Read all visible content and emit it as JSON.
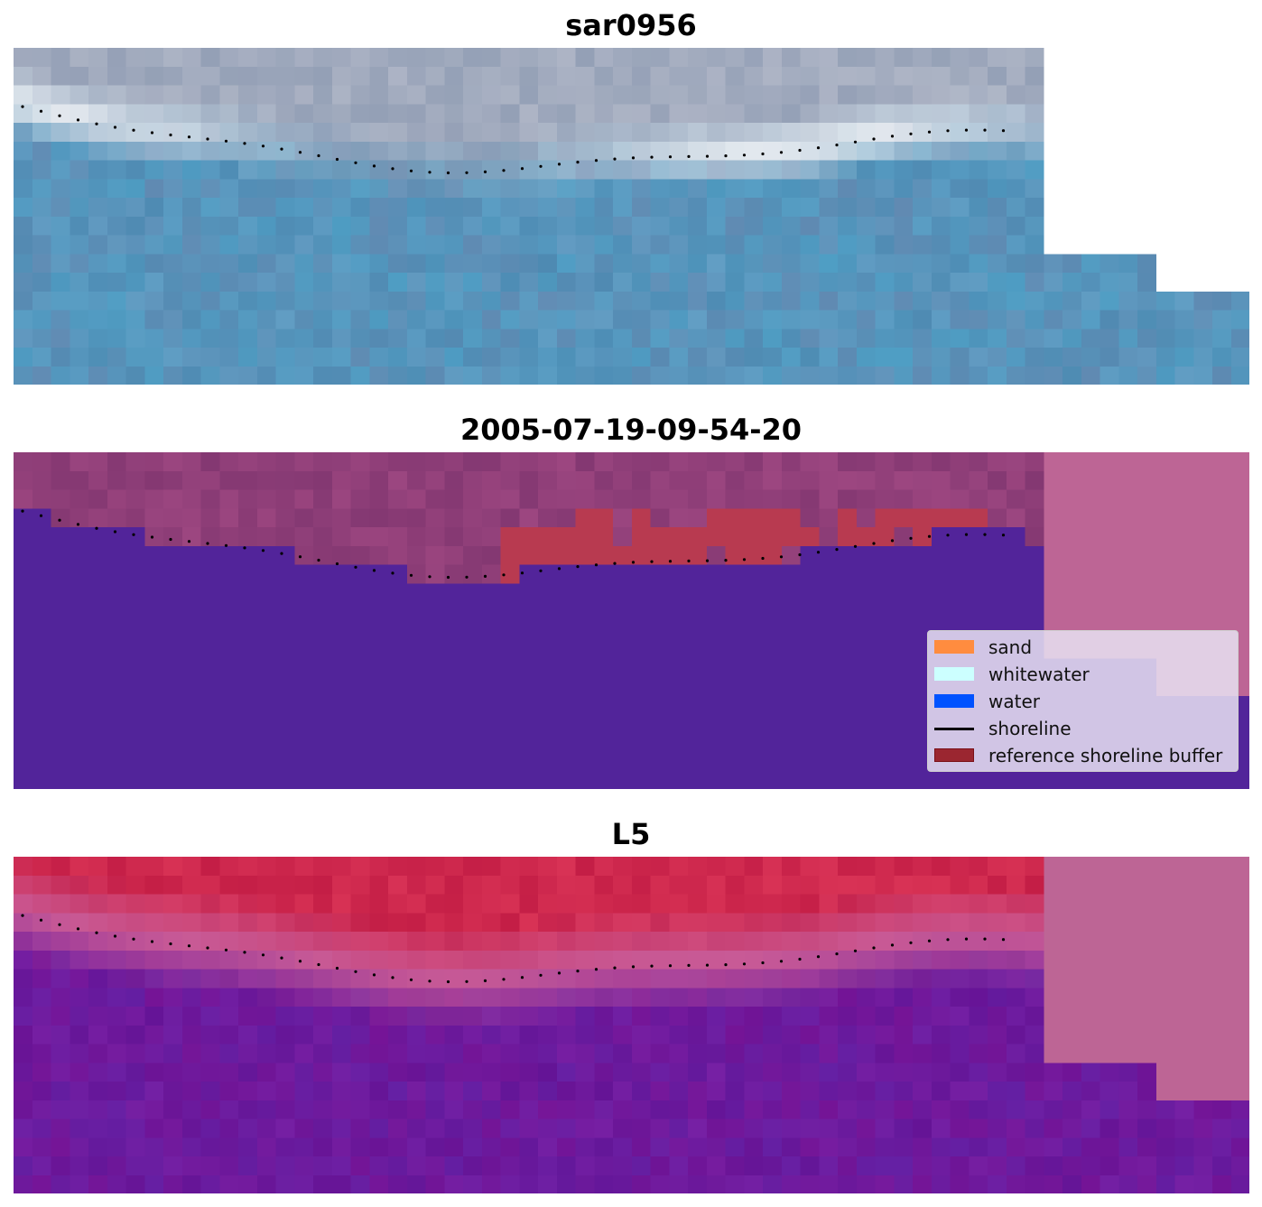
{
  "panels": [
    {
      "title": "sar0956",
      "style": "rgb"
    },
    {
      "title": "2005-07-19-09-54-20",
      "style": "class"
    },
    {
      "title": "L5",
      "style": "index"
    }
  ],
  "legend": {
    "items": [
      {
        "label": "sand",
        "color": "#ff8c3f",
        "kind": "patch"
      },
      {
        "label": "whitewater",
        "color": "#ccffff",
        "kind": "patch"
      },
      {
        "label": "water",
        "color": "#0052ff",
        "kind": "patch"
      },
      {
        "label": "shoreline",
        "color": "#000000",
        "kind": "line"
      },
      {
        "label": "reference shoreline buffer",
        "color": "#9b2630",
        "kind": "patch"
      }
    ]
  },
  "colors": {
    "water_class": "#52249a",
    "land_class": "#8c3a78",
    "buffer": "#b83a50",
    "nodata_pink": "#bd6595",
    "shoreline_dots": "#000000"
  }
}
